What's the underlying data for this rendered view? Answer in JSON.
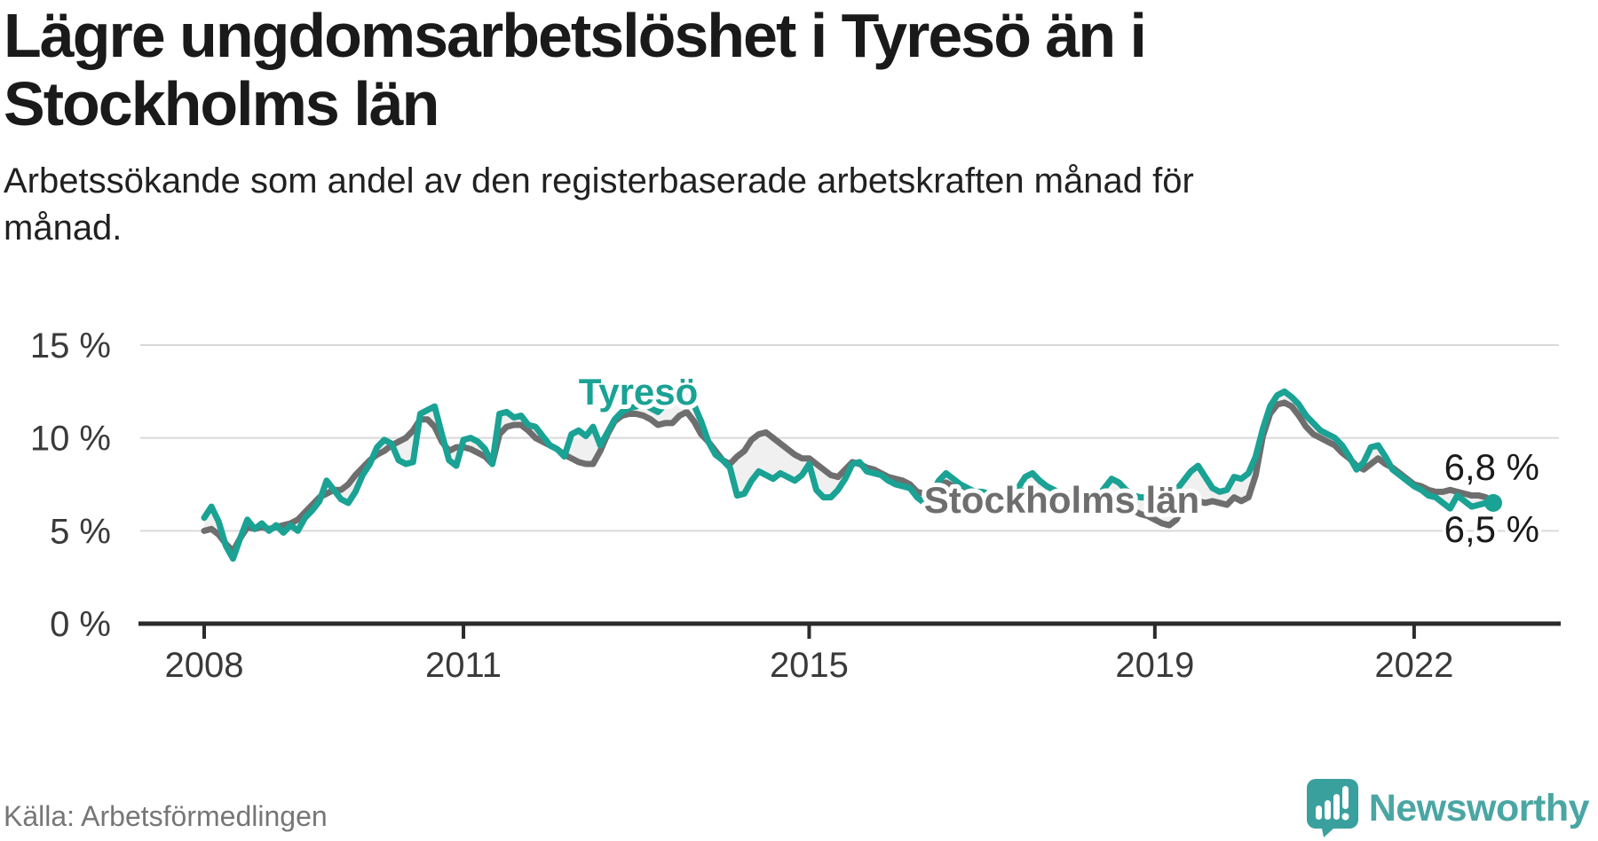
{
  "title": {
    "lines": [
      "Lägre ungdomsarbetslöshet i Tyresö än i",
      "Stockholms län"
    ]
  },
  "subtitle": {
    "lines": [
      "Arbetssökande som andel av den registerbaserade arbetskraften månad för",
      "månad."
    ]
  },
  "source": "Källa: Arbetsförmedlingen",
  "branding": {
    "name": "Newsworthy",
    "logo_icon": "speech-bubble-bar-chart-icon",
    "logo_color": "#3aa09e",
    "text_color": "#4aa6a3"
  },
  "colors": {
    "tyreso": "#1aa294",
    "stockholm": "#6e6e6e",
    "band": "#f0f0f0",
    "gridline": "#d9d9d9",
    "axis": "#2b2b2b",
    "tick_label": "#3a3a3a",
    "value_label": "#1a1a1a"
  },
  "chart_data": {
    "type": "line",
    "title": "Lägre ungdomsarbetslöshet i Tyresö än i Stockholms län",
    "x_unit": "month",
    "x_start": "2008-01",
    "x_end": "2022-11",
    "ylim": [
      0,
      15
    ],
    "grid": "horizontal",
    "legend": "inline-labels",
    "y_ticks": [
      {
        "value": 0,
        "label": "0 %"
      },
      {
        "value": 5,
        "label": "5 %"
      },
      {
        "value": 10,
        "label": "10 %"
      },
      {
        "value": 15,
        "label": "15 %"
      }
    ],
    "x_ticks": [
      {
        "year": 2008,
        "label": "2008"
      },
      {
        "year": 2011,
        "label": "2011"
      },
      {
        "year": 2015,
        "label": "2015"
      },
      {
        "year": 2019,
        "label": "2019"
      },
      {
        "year": 2022,
        "label": "2022"
      }
    ],
    "band_between_series": true,
    "series": [
      {
        "name": "Tyresö",
        "color": "#1aa294",
        "end_label": "6,5 %",
        "end_value": 6.5,
        "end_dot": true,
        "values": [
          5.7,
          6.3,
          5.5,
          4.2,
          3.5,
          4.6,
          5.6,
          5.1,
          5.4,
          5.0,
          5.3,
          4.9,
          5.3,
          5.0,
          5.7,
          6.1,
          6.6,
          7.7,
          7.2,
          6.7,
          6.5,
          7.1,
          8.0,
          8.6,
          9.5,
          9.9,
          9.7,
          8.8,
          8.6,
          8.7,
          11.3,
          11.5,
          11.7,
          10.2,
          8.8,
          8.5,
          9.9,
          10.0,
          9.8,
          9.4,
          8.6,
          11.3,
          11.4,
          11.1,
          11.2,
          10.7,
          10.6,
          10.1,
          9.6,
          9.4,
          9.0,
          10.2,
          10.4,
          10.1,
          10.6,
          9.6,
          10.3,
          11.0,
          11.4,
          11.6,
          11.7,
          11.9,
          11.6,
          11.4,
          11.8,
          12.1,
          12.3,
          12.4,
          11.8,
          10.9,
          9.8,
          9.1,
          8.8,
          8.4,
          6.9,
          7.0,
          7.7,
          8.2,
          8.0,
          7.8,
          8.1,
          7.9,
          7.7,
          8.0,
          8.6,
          7.2,
          6.8,
          6.8,
          7.2,
          7.8,
          8.6,
          8.7,
          8.2,
          8.1,
          8.0,
          7.7,
          7.5,
          7.4,
          7.3,
          6.8,
          6.5,
          7.0,
          7.7,
          8.1,
          7.8,
          7.5,
          7.3,
          7.1,
          7.1,
          7.0,
          6.9,
          6.8,
          6.8,
          7.3,
          7.9,
          8.1,
          7.7,
          7.4,
          7.2,
          7.0,
          7.0,
          6.9,
          6.8,
          6.6,
          6.8,
          7.3,
          7.8,
          7.6,
          7.2,
          6.9,
          6.8,
          6.8,
          6.8,
          6.7,
          6.9,
          7.2,
          7.7,
          8.2,
          8.5,
          7.9,
          7.3,
          7.1,
          7.2,
          7.9,
          7.8,
          8.1,
          9.0,
          10.5,
          11.7,
          12.3,
          12.5,
          12.2,
          11.8,
          11.2,
          10.8,
          10.4,
          10.2,
          10.0,
          9.6,
          9.0,
          8.3,
          8.7,
          9.5,
          9.6,
          9.0,
          8.3,
          8.0,
          7.7,
          7.4,
          7.2,
          6.9,
          6.8,
          6.5,
          6.2,
          6.9,
          6.6,
          6.3,
          6.4,
          6.5
        ]
      },
      {
        "name": "Stockholms län",
        "color": "#6e6e6e",
        "end_label": "6,8 %",
        "end_value": 6.8,
        "end_dot": false,
        "values": [
          5.0,
          5.1,
          4.8,
          4.3,
          3.9,
          4.6,
          5.2,
          5.1,
          5.2,
          5.1,
          5.2,
          5.3,
          5.4,
          5.6,
          6.0,
          6.4,
          6.8,
          7.0,
          7.2,
          7.2,
          7.5,
          8.0,
          8.4,
          8.8,
          9.1,
          9.3,
          9.6,
          9.8,
          10.0,
          10.4,
          11.0,
          11.0,
          10.6,
          9.8,
          9.3,
          9.5,
          9.5,
          9.4,
          9.2,
          9.0,
          8.6,
          10.2,
          10.6,
          10.7,
          10.7,
          10.4,
          10.0,
          9.8,
          9.6,
          9.4,
          9.1,
          8.9,
          8.7,
          8.6,
          8.6,
          9.3,
          10.2,
          10.9,
          11.2,
          11.3,
          11.3,
          11.2,
          11.0,
          10.7,
          10.8,
          10.8,
          11.2,
          11.4,
          10.9,
          10.2,
          9.8,
          9.3,
          8.8,
          8.6,
          9.0,
          9.3,
          9.9,
          10.2,
          10.3,
          10.0,
          9.7,
          9.4,
          9.1,
          8.9,
          8.9,
          8.6,
          8.3,
          8.0,
          7.9,
          8.3,
          8.7,
          8.6,
          8.4,
          8.3,
          8.1,
          7.9,
          7.8,
          7.7,
          7.5,
          7.1,
          7.0,
          7.2,
          7.5,
          7.6,
          7.4,
          7.2,
          7.0,
          6.9,
          6.9,
          6.8,
          6.7,
          6.6,
          6.6,
          6.9,
          7.2,
          7.2,
          7.0,
          6.8,
          6.6,
          6.5,
          6.5,
          6.4,
          6.3,
          6.2,
          6.3,
          6.6,
          6.8,
          6.7,
          6.4,
          6.1,
          5.9,
          5.8,
          5.6,
          5.4,
          5.3,
          5.6,
          6.4,
          6.5,
          6.6,
          6.5,
          6.6,
          6.5,
          6.4,
          6.8,
          6.6,
          6.8,
          8.0,
          10.1,
          11.3,
          11.8,
          11.9,
          11.7,
          11.2,
          10.6,
          10.2,
          10.0,
          9.8,
          9.6,
          9.2,
          8.9,
          8.5,
          8.3,
          8.6,
          8.9,
          8.6,
          8.4,
          8.1,
          7.8,
          7.5,
          7.4,
          7.2,
          7.1,
          7.1,
          7.2,
          7.1,
          7.0,
          6.9,
          6.9,
          6.8
        ]
      }
    ]
  }
}
